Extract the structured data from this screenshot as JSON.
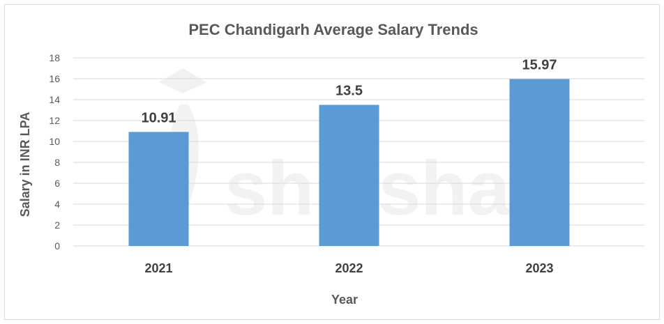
{
  "watermark": {
    "text": "shiksha"
  },
  "colors": {
    "bar": "#5b9bd5",
    "grid": "#d9d9d9",
    "text": "#595959"
  },
  "chart_data": {
    "type": "bar",
    "title": "PEC Chandigarh Average Salary Trends",
    "xlabel": "Year",
    "ylabel": "Salary in INR LPA",
    "categories": [
      "2021",
      "2022",
      "2023"
    ],
    "values": [
      10.91,
      13.5,
      15.97
    ],
    "data_labels": [
      "10.91",
      "13.5",
      "15.97"
    ],
    "ylim": [
      0,
      18
    ],
    "yticks": [
      0,
      2,
      4,
      6,
      8,
      10,
      12,
      14,
      16,
      18
    ],
    "grid": true,
    "legend": "none"
  }
}
